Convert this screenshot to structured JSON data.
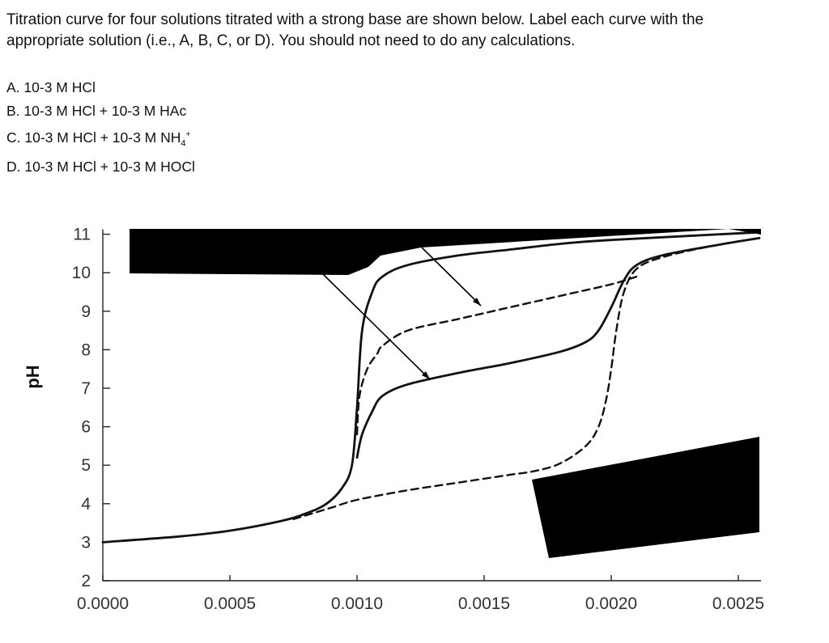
{
  "question": {
    "line1": "Titration curve for four solutions titrated with a strong base are shown below. Label each curve with the",
    "line2": "appropriate solution (i.e., A, B, C, or D). You should not need to do any calculations."
  },
  "options": [
    {
      "prefix": "A. 10-3 M HCl",
      "species": "",
      "sub": "",
      "sup": ""
    },
    {
      "prefix": "B. 10-3 M HCl + 10-3 M ",
      "species": "HAc",
      "sub": "",
      "sup": ""
    },
    {
      "prefix": "C. 10-3 M HCl + 10-3 M ",
      "species": "NH",
      "sub": "4",
      "sup": "+"
    },
    {
      "prefix": "D. 10-3 M HCl + 10-3 M ",
      "species": "HOCl",
      "sub": "",
      "sup": ""
    }
  ],
  "chart_data": {
    "type": "line",
    "xlabel": "",
    "ylabel": "pH",
    "xlim": [
      0,
      0.0026
    ],
    "ylim": [
      2,
      11
    ],
    "x_ticks": [
      "0.0000",
      "0.0005",
      "0.0010",
      "0.0015",
      "0.0020",
      "0.0025"
    ],
    "x_tick_values": [
      0,
      0.0005,
      0.001,
      0.0015,
      0.002,
      0.0025
    ],
    "y_ticks": [
      "2",
      "3",
      "4",
      "5",
      "6",
      "7",
      "8",
      "9",
      "10",
      "11"
    ],
    "y_tick_values": [
      2,
      3,
      4,
      5,
      6,
      7,
      8,
      9,
      10,
      11
    ],
    "series": [
      {
        "style": "solid",
        "x": [
          0,
          0.0003,
          0.0005,
          0.0007,
          0.0008,
          0.00088,
          0.00094,
          0.00098,
          0.001,
          0.00102,
          0.00106,
          0.0011,
          0.0012,
          0.0014,
          0.0016,
          0.0018,
          0.002,
          0.0026
        ],
        "y": [
          3.0,
          3.15,
          3.3,
          3.55,
          3.75,
          4.0,
          4.4,
          5.0,
          6.5,
          8.5,
          9.5,
          9.9,
          10.2,
          10.45,
          10.6,
          10.75,
          10.85,
          11.05
        ]
      },
      {
        "style": "solid",
        "x": [
          0.001,
          0.00102,
          0.00106,
          0.0011,
          0.0012,
          0.0014,
          0.0016,
          0.0018,
          0.0019,
          0.00195,
          0.002,
          0.00205,
          0.0021,
          0.0022,
          0.0024,
          0.0026
        ],
        "y": [
          5.2,
          5.8,
          6.4,
          6.8,
          7.1,
          7.4,
          7.65,
          7.95,
          8.2,
          8.5,
          9.1,
          9.8,
          10.2,
          10.45,
          10.7,
          10.9
        ]
      },
      {
        "style": "dashed",
        "x": [
          0.00075,
          0.0009,
          0.001,
          0.0012,
          0.0014,
          0.0016,
          0.0017,
          0.0018,
          0.0019,
          0.00195,
          0.00198,
          0.002,
          0.00202,
          0.00205,
          0.0021,
          0.0022,
          0.0024,
          0.0026
        ],
        "y": [
          3.6,
          3.9,
          4.1,
          4.35,
          4.55,
          4.75,
          4.85,
          5.05,
          5.5,
          6.0,
          6.7,
          7.5,
          8.5,
          9.5,
          10.1,
          10.4,
          10.7,
          10.9
        ]
      },
      {
        "style": "dashed",
        "x": [
          0.001,
          0.00101,
          0.00104,
          0.00108,
          0.0011,
          0.0012,
          0.0014,
          0.0016,
          0.0018,
          0.002,
          0.0021
        ],
        "y": [
          5.8,
          6.8,
          7.5,
          7.9,
          8.1,
          8.5,
          8.8,
          9.1,
          9.4,
          9.7,
          9.9
        ]
      }
    ],
    "grid": false,
    "legend": "none"
  }
}
